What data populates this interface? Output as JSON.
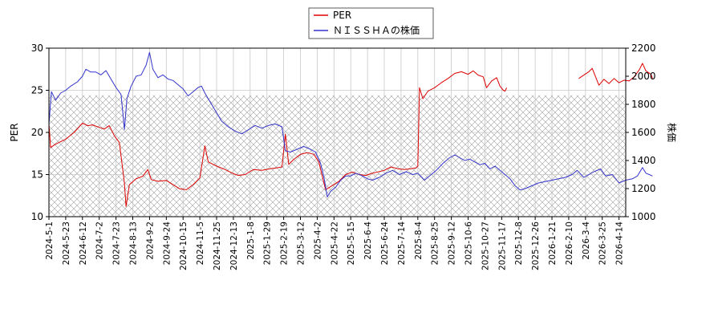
{
  "chart_data": {
    "type": "line",
    "legend": {
      "position": "top-center",
      "entries": [
        "PER",
        "ＮＩＳＳＨＡの株価"
      ]
    },
    "colors": {
      "per": "#dd0000",
      "price": "#3333cc"
    },
    "grid": true,
    "hatched_band": {
      "axis": "left",
      "from": 10,
      "to": 24.4
    },
    "x_tick_labels": [
      "2024-5-1",
      "2024-5-23",
      "2024-6-12",
      "2024-7-2",
      "2024-7-23",
      "2024-8-13",
      "2024-9-2",
      "2024-9-24",
      "2024-10-15",
      "2024-11-5",
      "2024-11-25",
      "2024-12-13",
      "2025-1-8",
      "2025-1-29",
      "2025-2-19",
      "2025-3-12",
      "2025-4-2",
      "2025-4-22",
      "2025-5-15",
      "2025-6-4",
      "2025-6-24",
      "2025-7-14",
      "2025-8-4",
      "2025-8-25",
      "2025-9-12",
      "2025-10-6",
      "2025-10-27",
      "2025-11-17",
      "2025-12-8",
      "2025-12-26",
      "2026-1-21",
      "2026-2-10",
      "2026-3-4",
      "2026-3-25",
      "2026-4-14"
    ],
    "y_left": {
      "label": "PER",
      "ylim": [
        10,
        30
      ],
      "ticks": [
        10,
        15,
        20,
        25,
        30
      ]
    },
    "y_right": {
      "label": "株価",
      "ylim": [
        1000,
        2200
      ],
      "ticks": [
        1000,
        1200,
        1400,
        1600,
        1800,
        2000,
        2200
      ]
    },
    "series": [
      {
        "name": "PER",
        "axis": "left",
        "points": [
          [
            0,
            21
          ],
          [
            0.1,
            18.2
          ],
          [
            0.3,
            18.5
          ],
          [
            0.6,
            18.8
          ],
          [
            1,
            19.2
          ],
          [
            1.5,
            20
          ],
          [
            2,
            21.1
          ],
          [
            2.3,
            20.8
          ],
          [
            2.6,
            20.9
          ],
          [
            3,
            20.6
          ],
          [
            3.3,
            20.4
          ],
          [
            3.6,
            20.8
          ],
          [
            3.9,
            19.6
          ],
          [
            4.2,
            18.8
          ],
          [
            4.5,
            14
          ],
          [
            4.6,
            11.2
          ],
          [
            4.8,
            13.8
          ],
          [
            5.2,
            14.5
          ],
          [
            5.6,
            14.8
          ],
          [
            5.9,
            15.6
          ],
          [
            6.1,
            14.4
          ],
          [
            6.5,
            14.2
          ],
          [
            7,
            14.3
          ],
          [
            7.4,
            13.8
          ],
          [
            7.8,
            13.3
          ],
          [
            8.2,
            13.2
          ],
          [
            8.6,
            13.8
          ],
          [
            9,
            14.6
          ],
          [
            9.3,
            18.4
          ],
          [
            9.5,
            16.5
          ],
          [
            10,
            16
          ],
          [
            10.5,
            15.6
          ],
          [
            11,
            15.1
          ],
          [
            11.3,
            14.9
          ],
          [
            11.7,
            15
          ],
          [
            12.2,
            15.6
          ],
          [
            12.7,
            15.5
          ],
          [
            13.2,
            15.7
          ],
          [
            13.6,
            15.8
          ],
          [
            13.9,
            15.9
          ],
          [
            14.1,
            19.8
          ],
          [
            14.3,
            16.2
          ],
          [
            14.6,
            16.8
          ],
          [
            15,
            17.4
          ],
          [
            15.4,
            17.6
          ],
          [
            15.8,
            17.4
          ],
          [
            16.1,
            16.5
          ],
          [
            16.3,
            14.8
          ],
          [
            16.5,
            13.2
          ],
          [
            16.9,
            13.7
          ],
          [
            17.3,
            14.2
          ],
          [
            17.7,
            15
          ],
          [
            18.1,
            15.3
          ],
          [
            18.5,
            15
          ],
          [
            18.9,
            14.9
          ],
          [
            19.2,
            15.1
          ],
          [
            19.6,
            15.3
          ],
          [
            20,
            15.5
          ],
          [
            20.4,
            15.9
          ],
          [
            20.8,
            15.7
          ],
          [
            21.2,
            15.6
          ],
          [
            21.6,
            15.7
          ],
          [
            21.9,
            15.8
          ],
          [
            22,
            16
          ],
          [
            22.1,
            25.3
          ],
          [
            22.3,
            24
          ],
          [
            22.6,
            24.9
          ],
          [
            23,
            25.3
          ],
          [
            23.4,
            25.9
          ],
          [
            23.8,
            26.4
          ],
          [
            24.2,
            27
          ],
          [
            24.6,
            27.2
          ],
          [
            25,
            26.9
          ],
          [
            25.3,
            27.3
          ],
          [
            25.6,
            26.8
          ],
          [
            25.9,
            26.6
          ],
          [
            26.1,
            25.3
          ],
          [
            26.4,
            26.1
          ],
          [
            26.7,
            26.5
          ],
          [
            26.9,
            25.5
          ],
          [
            27.1,
            25
          ],
          [
            27.2,
            24.9
          ],
          [
            27.3,
            25.3
          ],
          [
            29.8,
            null
          ],
          [
            31.5,
            null
          ],
          [
            31.6,
            26.4
          ],
          [
            31.9,
            26.8
          ],
          [
            32.2,
            27.2
          ],
          [
            32.4,
            27.6
          ],
          [
            32.6,
            26.6
          ],
          [
            32.8,
            25.6
          ],
          [
            33.1,
            26.3
          ],
          [
            33.4,
            25.8
          ],
          [
            33.7,
            26.4
          ],
          [
            34,
            25.9
          ],
          [
            34.3,
            26.2
          ],
          [
            34.6,
            26.1
          ],
          [
            34.9,
            26.6
          ],
          [
            35.2,
            27.4
          ],
          [
            35.4,
            28.2
          ],
          [
            35.6,
            27.3
          ],
          [
            35.9,
            26.9
          ],
          [
            36,
            26.4
          ]
        ]
      },
      {
        "name": "ＮＩＳＳＨＡの株価",
        "axis": "right",
        "points": [
          [
            0,
            1660
          ],
          [
            0.15,
            1890
          ],
          [
            0.4,
            1830
          ],
          [
            0.7,
            1880
          ],
          [
            1,
            1900
          ],
          [
            1.3,
            1930
          ],
          [
            1.7,
            1960
          ],
          [
            2,
            2000
          ],
          [
            2.2,
            2050
          ],
          [
            2.5,
            2030
          ],
          [
            2.8,
            2030
          ],
          [
            3.1,
            2010
          ],
          [
            3.4,
            2040
          ],
          [
            3.7,
            1980
          ],
          [
            4,
            1920
          ],
          [
            4.3,
            1870
          ],
          [
            4.5,
            1620
          ],
          [
            4.65,
            1840
          ],
          [
            4.9,
            1930
          ],
          [
            5.2,
            2000
          ],
          [
            5.5,
            2010
          ],
          [
            5.8,
            2080
          ],
          [
            6,
            2170
          ],
          [
            6.2,
            2050
          ],
          [
            6.5,
            1990
          ],
          [
            6.8,
            2010
          ],
          [
            7.1,
            1980
          ],
          [
            7.4,
            1970
          ],
          [
            7.7,
            1940
          ],
          [
            8,
            1910
          ],
          [
            8.3,
            1860
          ],
          [
            8.6,
            1890
          ],
          [
            8.9,
            1920
          ],
          [
            9.1,
            1930
          ],
          [
            9.3,
            1880
          ],
          [
            9.5,
            1840
          ],
          [
            9.9,
            1760
          ],
          [
            10.3,
            1680
          ],
          [
            10.7,
            1640
          ],
          [
            11.1,
            1610
          ],
          [
            11.5,
            1590
          ],
          [
            11.9,
            1620
          ],
          [
            12.3,
            1650
          ],
          [
            12.7,
            1630
          ],
          [
            13.1,
            1650
          ],
          [
            13.5,
            1660
          ],
          [
            13.9,
            1640
          ],
          [
            14.1,
            1470
          ],
          [
            14.4,
            1460
          ],
          [
            14.8,
            1480
          ],
          [
            15.2,
            1500
          ],
          [
            15.6,
            1480
          ],
          [
            15.9,
            1460
          ],
          [
            16.2,
            1380
          ],
          [
            16.4,
            1280
          ],
          [
            16.6,
            1140
          ],
          [
            16.8,
            1180
          ],
          [
            17.1,
            1210
          ],
          [
            17.4,
            1260
          ],
          [
            17.7,
            1290
          ],
          [
            18,
            1290
          ],
          [
            18.3,
            1310
          ],
          [
            18.7,
            1290
          ],
          [
            19,
            1270
          ],
          [
            19.3,
            1260
          ],
          [
            19.7,
            1280
          ],
          [
            20.1,
            1310
          ],
          [
            20.5,
            1330
          ],
          [
            20.9,
            1300
          ],
          [
            21.3,
            1320
          ],
          [
            21.7,
            1300
          ],
          [
            22,
            1310
          ],
          [
            22.4,
            1260
          ],
          [
            22.8,
            1300
          ],
          [
            23.1,
            1330
          ],
          [
            23.5,
            1380
          ],
          [
            23.9,
            1420
          ],
          [
            24.2,
            1440
          ],
          [
            24.5,
            1420
          ],
          [
            24.8,
            1400
          ],
          [
            25.1,
            1410
          ],
          [
            25.4,
            1390
          ],
          [
            25.7,
            1370
          ],
          [
            26,
            1380
          ],
          [
            26.3,
            1340
          ],
          [
            26.6,
            1360
          ],
          [
            26.9,
            1330
          ],
          [
            27.2,
            1300
          ],
          [
            27.5,
            1270
          ],
          [
            27.8,
            1220
          ],
          [
            28.1,
            1190
          ],
          [
            28.4,
            1200
          ],
          [
            28.8,
            1220
          ],
          [
            29.2,
            1240
          ],
          [
            29.6,
            1250
          ],
          [
            30,
            1260
          ],
          [
            30.4,
            1270
          ],
          [
            30.8,
            1280
          ],
          [
            31.2,
            1300
          ],
          [
            31.5,
            1330
          ],
          [
            31.9,
            1280
          ],
          [
            32.2,
            1300
          ],
          [
            32.5,
            1320
          ],
          [
            32.9,
            1340
          ],
          [
            33.2,
            1290
          ],
          [
            33.6,
            1300
          ],
          [
            34,
            1240
          ],
          [
            34.4,
            1260
          ],
          [
            34.8,
            1270
          ],
          [
            35.1,
            1290
          ],
          [
            35.4,
            1350
          ],
          [
            35.6,
            1310
          ],
          [
            35.8,
            1300
          ],
          [
            36,
            1290
          ]
        ]
      }
    ]
  }
}
